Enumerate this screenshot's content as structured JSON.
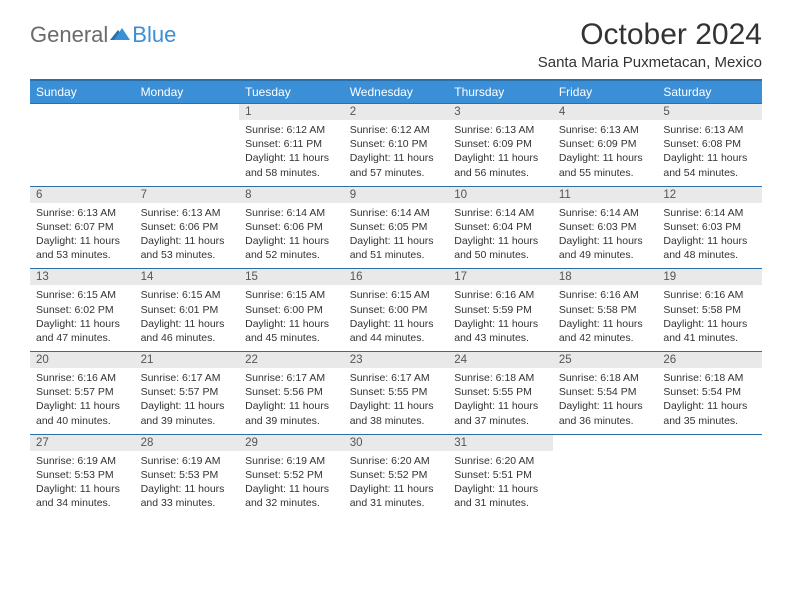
{
  "logo": {
    "part1": "General",
    "part2": "Blue"
  },
  "title": "October 2024",
  "location": "Santa Maria Puxmetacan, Mexico",
  "header_bg": "#3a8fd6",
  "header_border": "#2a6fa8",
  "daynum_bg": "#e9e9e9",
  "daysOfWeek": [
    "Sunday",
    "Monday",
    "Tuesday",
    "Wednesday",
    "Thursday",
    "Friday",
    "Saturday"
  ],
  "weeks": [
    [
      null,
      null,
      {
        "n": "1",
        "sr": "6:12 AM",
        "ss": "6:11 PM",
        "dl": "11 hours and 58 minutes."
      },
      {
        "n": "2",
        "sr": "6:12 AM",
        "ss": "6:10 PM",
        "dl": "11 hours and 57 minutes."
      },
      {
        "n": "3",
        "sr": "6:13 AM",
        "ss": "6:09 PM",
        "dl": "11 hours and 56 minutes."
      },
      {
        "n": "4",
        "sr": "6:13 AM",
        "ss": "6:09 PM",
        "dl": "11 hours and 55 minutes."
      },
      {
        "n": "5",
        "sr": "6:13 AM",
        "ss": "6:08 PM",
        "dl": "11 hours and 54 minutes."
      }
    ],
    [
      {
        "n": "6",
        "sr": "6:13 AM",
        "ss": "6:07 PM",
        "dl": "11 hours and 53 minutes."
      },
      {
        "n": "7",
        "sr": "6:13 AM",
        "ss": "6:06 PM",
        "dl": "11 hours and 53 minutes."
      },
      {
        "n": "8",
        "sr": "6:14 AM",
        "ss": "6:06 PM",
        "dl": "11 hours and 52 minutes."
      },
      {
        "n": "9",
        "sr": "6:14 AM",
        "ss": "6:05 PM",
        "dl": "11 hours and 51 minutes."
      },
      {
        "n": "10",
        "sr": "6:14 AM",
        "ss": "6:04 PM",
        "dl": "11 hours and 50 minutes."
      },
      {
        "n": "11",
        "sr": "6:14 AM",
        "ss": "6:03 PM",
        "dl": "11 hours and 49 minutes."
      },
      {
        "n": "12",
        "sr": "6:14 AM",
        "ss": "6:03 PM",
        "dl": "11 hours and 48 minutes."
      }
    ],
    [
      {
        "n": "13",
        "sr": "6:15 AM",
        "ss": "6:02 PM",
        "dl": "11 hours and 47 minutes."
      },
      {
        "n": "14",
        "sr": "6:15 AM",
        "ss": "6:01 PM",
        "dl": "11 hours and 46 minutes."
      },
      {
        "n": "15",
        "sr": "6:15 AM",
        "ss": "6:00 PM",
        "dl": "11 hours and 45 minutes."
      },
      {
        "n": "16",
        "sr": "6:15 AM",
        "ss": "6:00 PM",
        "dl": "11 hours and 44 minutes."
      },
      {
        "n": "17",
        "sr": "6:16 AM",
        "ss": "5:59 PM",
        "dl": "11 hours and 43 minutes."
      },
      {
        "n": "18",
        "sr": "6:16 AM",
        "ss": "5:58 PM",
        "dl": "11 hours and 42 minutes."
      },
      {
        "n": "19",
        "sr": "6:16 AM",
        "ss": "5:58 PM",
        "dl": "11 hours and 41 minutes."
      }
    ],
    [
      {
        "n": "20",
        "sr": "6:16 AM",
        "ss": "5:57 PM",
        "dl": "11 hours and 40 minutes."
      },
      {
        "n": "21",
        "sr": "6:17 AM",
        "ss": "5:57 PM",
        "dl": "11 hours and 39 minutes."
      },
      {
        "n": "22",
        "sr": "6:17 AM",
        "ss": "5:56 PM",
        "dl": "11 hours and 39 minutes."
      },
      {
        "n": "23",
        "sr": "6:17 AM",
        "ss": "5:55 PM",
        "dl": "11 hours and 38 minutes."
      },
      {
        "n": "24",
        "sr": "6:18 AM",
        "ss": "5:55 PM",
        "dl": "11 hours and 37 minutes."
      },
      {
        "n": "25",
        "sr": "6:18 AM",
        "ss": "5:54 PM",
        "dl": "11 hours and 36 minutes."
      },
      {
        "n": "26",
        "sr": "6:18 AM",
        "ss": "5:54 PM",
        "dl": "11 hours and 35 minutes."
      }
    ],
    [
      {
        "n": "27",
        "sr": "6:19 AM",
        "ss": "5:53 PM",
        "dl": "11 hours and 34 minutes."
      },
      {
        "n": "28",
        "sr": "6:19 AM",
        "ss": "5:53 PM",
        "dl": "11 hours and 33 minutes."
      },
      {
        "n": "29",
        "sr": "6:19 AM",
        "ss": "5:52 PM",
        "dl": "11 hours and 32 minutes."
      },
      {
        "n": "30",
        "sr": "6:20 AM",
        "ss": "5:52 PM",
        "dl": "11 hours and 31 minutes."
      },
      {
        "n": "31",
        "sr": "6:20 AM",
        "ss": "5:51 PM",
        "dl": "11 hours and 31 minutes."
      },
      null,
      null
    ]
  ],
  "labels": {
    "sunrise": "Sunrise:",
    "sunset": "Sunset:",
    "daylight": "Daylight:"
  }
}
